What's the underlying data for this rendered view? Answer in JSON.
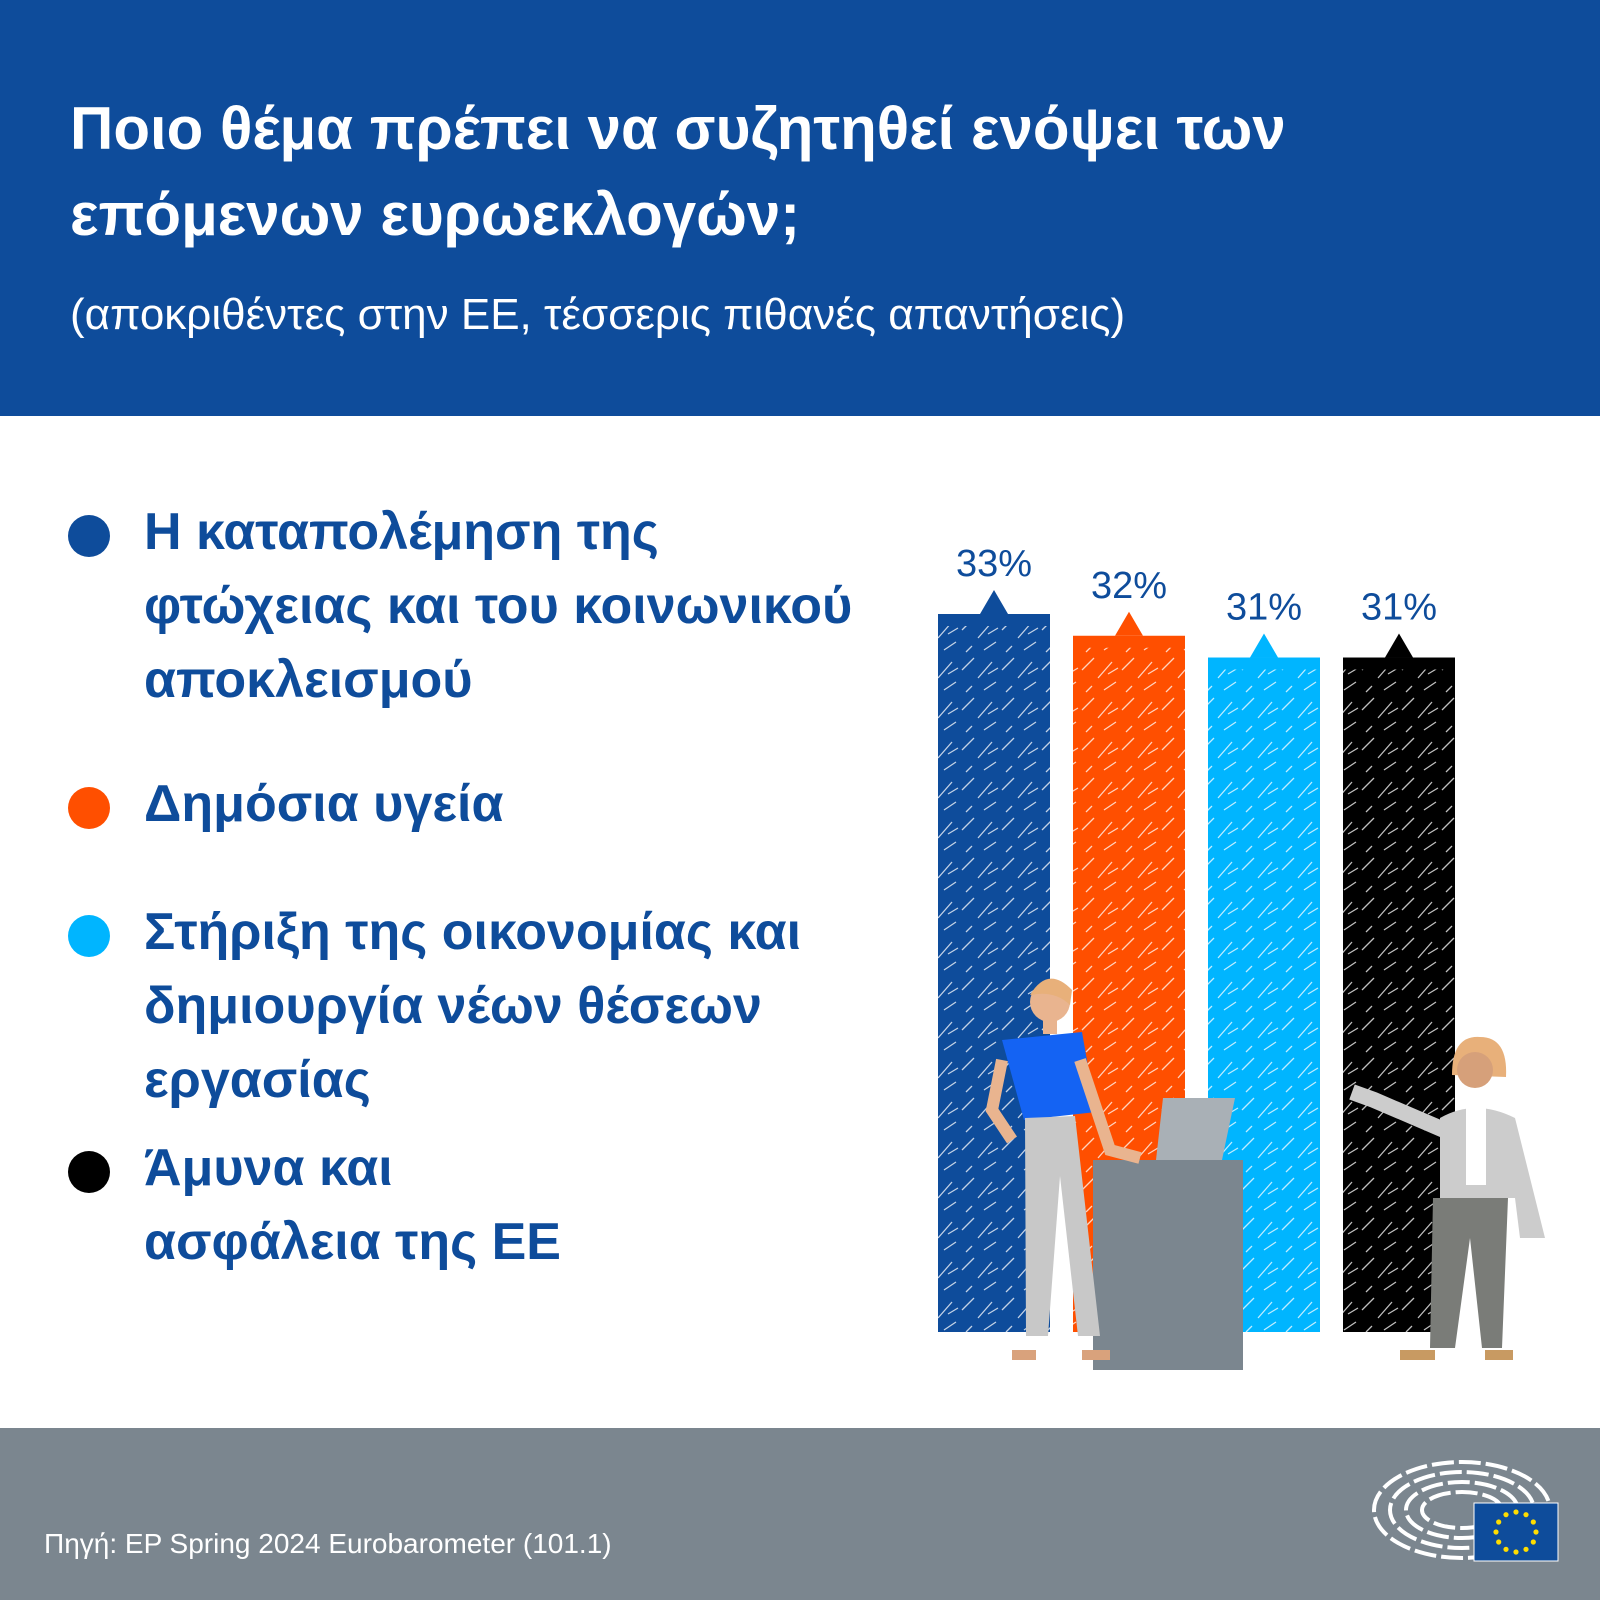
{
  "header": {
    "title": "Ποιο θέμα πρέπει να συζητηθεί ενόψει των επόμενων ευρωεκλογών;",
    "subtitle": "(αποκριθέντες στην ΕΕ, τέσσερις πιθανές απαντήσεις)"
  },
  "chart_data": {
    "type": "bar",
    "categories": [
      "Η καταπολέμηση της φτώχειας και του κοινωνικού αποκλεισμού",
      "Δημόσια υγεία",
      "Στήριξη της οικονομίας και δημιουργία νέων θέσεων εργασίας",
      "Άμυνα και ασφάλεια της ΕΕ"
    ],
    "values": [
      33,
      32,
      31,
      31
    ],
    "labels": [
      "33%",
      "32%",
      "31%",
      "31%"
    ],
    "colors": [
      "#0e4c9b",
      "#ff4f00",
      "#00b5ff",
      "#000000"
    ],
    "title": "Ποιο θέμα πρέπει να συζητηθεί ενόψει των επόμενων ευρωεκλογών;",
    "xlabel": "",
    "ylabel": "",
    "ylim": [
      0,
      33
    ],
    "grid": false,
    "legend": "left"
  },
  "footer": {
    "source": "Πηγή: EP Spring 2024 Eurobarometer (101.1)"
  }
}
